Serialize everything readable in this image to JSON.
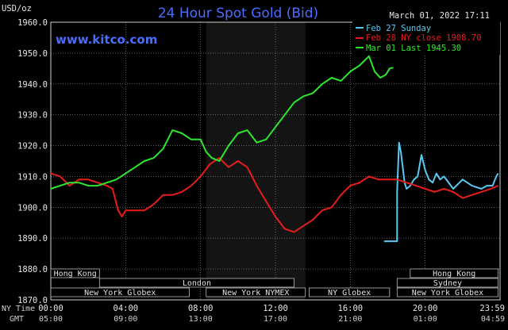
{
  "chart_data": {
    "type": "line",
    "title": "24 Hour Spot Gold (Bid)",
    "watermark": "www.kitco.com",
    "timestamp": "March 01, 2022 17:11",
    "ylabel": "USD/oz",
    "ylim": [
      1870,
      1960
    ],
    "yticks": [
      "1960.0",
      "1950.0",
      "1940.0",
      "1930.0",
      "1920.0",
      "1910.0",
      "1900.0",
      "1890.0",
      "1880.0",
      "1870.0"
    ],
    "xlim": [
      0,
      24
    ],
    "row_labels": {
      "ny": "NY Time",
      "gmt": "GMT"
    },
    "xticks_ny": [
      "00:00",
      "04:00",
      "08:00",
      "12:00",
      "16:00",
      "20:00",
      "23:59"
    ],
    "xticks_gmt": [
      "05:00",
      "09:00",
      "13:00",
      "17:00",
      "21:00",
      "01:00",
      "04:59"
    ],
    "shaded_range": [
      8.3,
      13.6
    ],
    "grid": true,
    "legend_position": "top-right",
    "colors": {
      "background": "#000000",
      "grid": "#9a9a9a",
      "feb27": "#5bc8f0",
      "feb28": "#e81c1c",
      "mar01": "#2ee82e",
      "title": "#4a6cff",
      "shade": "#141414",
      "session_bar": "#000000",
      "session_border": "#bbbbbb"
    },
    "series": [
      {
        "name": "Feb 27 Sunday",
        "color": "#5bc8f0",
        "x": [
          17.8,
          18.5,
          18.5,
          18.6,
          18.7,
          18.8,
          18.9,
          19.0,
          19.2,
          19.4,
          19.6,
          19.8,
          20.0,
          20.2,
          20.4,
          20.6,
          20.8,
          21.0,
          21.5,
          22.0,
          22.5,
          23.0,
          23.3,
          23.6,
          23.8,
          23.9
        ],
        "y": [
          1889.0,
          1889.0,
          1905.0,
          1921.0,
          1918.0,
          1913.0,
          1908.0,
          1906.0,
          1907.0,
          1909.0,
          1910.0,
          1917.0,
          1912.0,
          1909.0,
          1908.0,
          1911.0,
          1909.0,
          1910.0,
          1906.0,
          1909.0,
          1907.0,
          1906.0,
          1907.0,
          1907.0,
          1910.0,
          1911.0
        ]
      },
      {
        "name": "Feb 28 NY close 1908.70",
        "color": "#e81c1c",
        "x": [
          0.0,
          0.5,
          1.0,
          1.5,
          2.0,
          2.5,
          3.0,
          3.3,
          3.6,
          3.8,
          4.0,
          4.5,
          5.0,
          5.5,
          6.0,
          6.5,
          7.0,
          7.5,
          8.0,
          8.5,
          9.0,
          9.5,
          10.0,
          10.5,
          11.0,
          11.5,
          12.0,
          12.5,
          13.0,
          13.5,
          14.0,
          14.5,
          15.0,
          15.5,
          16.0,
          16.5,
          17.0,
          17.5,
          18.0,
          18.5,
          19.0,
          19.5,
          20.0,
          20.5,
          21.0,
          21.5,
          22.0,
          22.5,
          23.0,
          23.5,
          23.9
        ],
        "y": [
          1911.0,
          1910.0,
          1907.0,
          1909.0,
          1909.0,
          1908.0,
          1907.0,
          1906.0,
          1899.0,
          1897.0,
          1899.0,
          1899.0,
          1899.0,
          1901.0,
          1904.0,
          1904.0,
          1905.0,
          1907.0,
          1910.0,
          1914.0,
          1916.0,
          1913.0,
          1915.0,
          1913.0,
          1907.0,
          1902.0,
          1897.0,
          1893.0,
          1892.0,
          1894.0,
          1896.0,
          1899.0,
          1900.0,
          1904.0,
          1907.0,
          1908.0,
          1910.0,
          1909.0,
          1909.0,
          1909.0,
          1908.0,
          1907.0,
          1906.0,
          1905.0,
          1906.0,
          1905.0,
          1903.0,
          1904.0,
          1905.0,
          1906.0,
          1907.0
        ]
      },
      {
        "name": "Mar 01 Last 1945.30",
        "color": "#2ee82e",
        "x": [
          0.0,
          0.5,
          1.0,
          1.5,
          2.0,
          2.5,
          3.0,
          3.5,
          4.0,
          4.5,
          5.0,
          5.5,
          6.0,
          6.5,
          7.0,
          7.5,
          8.0,
          8.3,
          8.6,
          9.0,
          9.5,
          10.0,
          10.5,
          11.0,
          11.5,
          12.0,
          12.5,
          13.0,
          13.5,
          14.0,
          14.5,
          15.0,
          15.5,
          16.0,
          16.5,
          17.0,
          17.3,
          17.6,
          17.9,
          18.1,
          18.3
        ],
        "y": [
          1906.0,
          1907.0,
          1908.0,
          1908.0,
          1907.0,
          1907.0,
          1908.0,
          1909.0,
          1911.0,
          1913.0,
          1915.0,
          1916.0,
          1919.0,
          1925.0,
          1924.0,
          1922.0,
          1922.0,
          1918.0,
          1916.0,
          1915.0,
          1920.0,
          1924.0,
          1925.0,
          1921.0,
          1922.0,
          1926.0,
          1930.0,
          1934.0,
          1936.0,
          1937.0,
          1940.0,
          1942.0,
          1941.0,
          1944.0,
          1946.0,
          1949.0,
          1944.0,
          1942.0,
          1943.0,
          1945.0,
          1945.3
        ]
      }
    ],
    "sessions": [
      {
        "label": "Hong Kong",
        "start": 0.0,
        "end": 2.6,
        "row": 0
      },
      {
        "label": "London",
        "start": 2.6,
        "end": 13.0,
        "row": 1
      },
      {
        "label": "New York Globex",
        "start": 0.0,
        "end": 7.4,
        "row": 2
      },
      {
        "label": "New York NYMEX",
        "start": 8.3,
        "end": 13.6,
        "row": 2
      },
      {
        "label": "NY Globex",
        "start": 13.8,
        "end": 18.1,
        "row": 2
      },
      {
        "label": "Hong Kong",
        "start": 19.2,
        "end": 23.9,
        "row": 0
      },
      {
        "label": "Sydney",
        "start": 18.5,
        "end": 23.9,
        "row": 1
      },
      {
        "label": "New York Globex",
        "start": 18.5,
        "end": 23.9,
        "row": 2
      }
    ]
  }
}
